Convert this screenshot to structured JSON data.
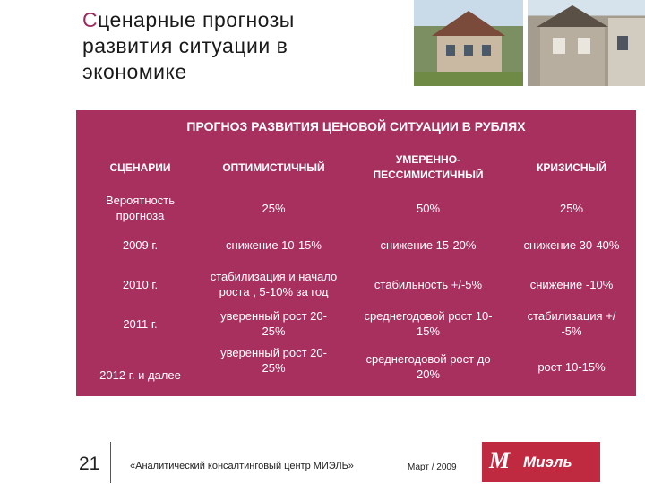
{
  "slide": {
    "title_first": "С",
    "title_rest": "ценарные прогнозы развития ситуации в экономике",
    "page_number": "21",
    "footer_text": "«Аналитический консалтинговый центр МИЭЛЬ»",
    "date": "Март / 2009",
    "logo_mark": "M",
    "logo_text": "Миэль",
    "accent_color": "#a8305f",
    "logo_color": "#c02a40"
  },
  "table": {
    "title": "ПРОГНОЗ РАЗВИТИЯ ЦЕНОВОЙ СИТУАЦИИ В РУБЛЯХ",
    "headers": [
      "СЦЕНАРИИ",
      "ОПТИМИСТИЧНЫЙ",
      "УМЕРЕННО-ПЕССИМИСТИЧНЫЙ",
      "КРИЗИСНЫЙ"
    ],
    "rows": [
      [
        "Вероятность прогноза",
        "25%",
        "50%",
        "25%"
      ],
      [
        "2009 г.",
        "снижение 10-15%",
        "снижение 15-20%",
        "снижение 30-40%"
      ],
      [
        "2010 г.",
        "стабилизация и начало роста , 5-10% за год",
        "стабильность +/-5%",
        "снижение -10%"
      ],
      [
        "2011 г.",
        "уверенный рост 20-25%",
        "среднегодовой рост 10-15%",
        "стабилизация +/ -5%"
      ],
      [
        "2012 г. и далее",
        "уверенный рост 20-25%",
        "среднегодовой рост до 20%",
        "рост 10-15%"
      ]
    ]
  },
  "photos": [
    "house-photo-left",
    "house-photo-right"
  ]
}
